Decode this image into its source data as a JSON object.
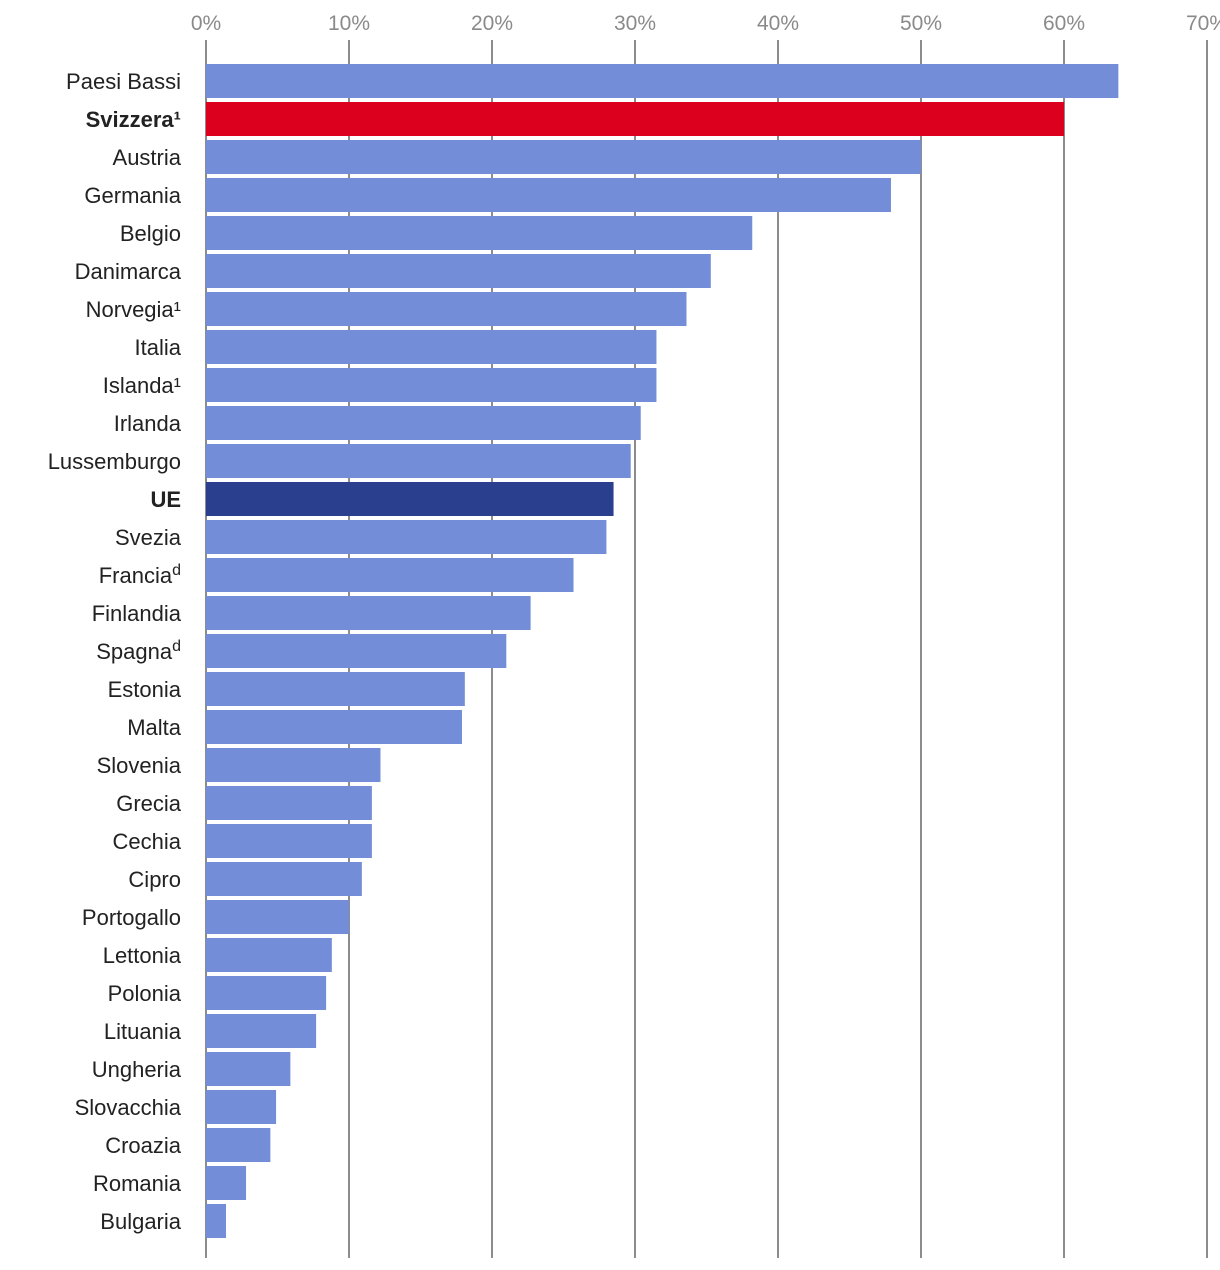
{
  "chart_data": {
    "type": "bar",
    "orientation": "horizontal",
    "xlim": [
      0,
      70
    ],
    "x_ticks": [
      "0%",
      "10%",
      "20%",
      "30%",
      "40%",
      "50%",
      "60%",
      "70%"
    ],
    "tick_values": [
      0,
      10,
      20,
      30,
      40,
      50,
      60,
      70
    ],
    "grid": true,
    "categories": [
      {
        "label": "Paesi Bassi",
        "sup": "",
        "value": 63.8,
        "highlight": "none"
      },
      {
        "label": "Svizzera",
        "sup": "¹",
        "value": 60.0,
        "highlight": "red"
      },
      {
        "label": "Austria",
        "sup": "",
        "value": 50.0,
        "highlight": "none"
      },
      {
        "label": "Germania",
        "sup": "",
        "value": 47.9,
        "highlight": "none"
      },
      {
        "label": "Belgio",
        "sup": "",
        "value": 38.2,
        "highlight": "none"
      },
      {
        "label": "Danimarca",
        "sup": "",
        "value": 35.3,
        "highlight": "none"
      },
      {
        "label": "Norvegia",
        "sup": "¹",
        "value": 33.6,
        "highlight": "none"
      },
      {
        "label": "Italia",
        "sup": "",
        "value": 31.5,
        "highlight": "none"
      },
      {
        "label": "Islanda",
        "sup": "¹",
        "value": 31.5,
        "highlight": "none"
      },
      {
        "label": "Irlanda",
        "sup": "",
        "value": 30.4,
        "highlight": "none"
      },
      {
        "label": "Lussemburgo",
        "sup": "",
        "value": 29.7,
        "highlight": "none"
      },
      {
        "label": "UE",
        "sup": "",
        "value": 28.5,
        "highlight": "dark"
      },
      {
        "label": "Svezia",
        "sup": "",
        "value": 28.0,
        "highlight": "none"
      },
      {
        "label": "Francia",
        "sup": "d",
        "value": 25.7,
        "highlight": "none"
      },
      {
        "label": "Finlandia",
        "sup": "",
        "value": 22.7,
        "highlight": "none"
      },
      {
        "label": "Spagna",
        "sup": "d",
        "value": 21.0,
        "highlight": "none"
      },
      {
        "label": "Estonia",
        "sup": "",
        "value": 18.1,
        "highlight": "none"
      },
      {
        "label": "Malta",
        "sup": "",
        "value": 17.9,
        "highlight": "none"
      },
      {
        "label": "Slovenia",
        "sup": "",
        "value": 12.2,
        "highlight": "none"
      },
      {
        "label": "Grecia",
        "sup": "",
        "value": 11.6,
        "highlight": "none"
      },
      {
        "label": "Cechia",
        "sup": "",
        "value": 11.6,
        "highlight": "none"
      },
      {
        "label": "Cipro",
        "sup": "",
        "value": 10.9,
        "highlight": "none"
      },
      {
        "label": "Portogallo",
        "sup": "",
        "value": 10.0,
        "highlight": "none"
      },
      {
        "label": "Lettonia",
        "sup": "",
        "value": 8.8,
        "highlight": "none"
      },
      {
        "label": "Polonia",
        "sup": "",
        "value": 8.4,
        "highlight": "none"
      },
      {
        "label": "Lituania",
        "sup": "",
        "value": 7.7,
        "highlight": "none"
      },
      {
        "label": "Ungheria",
        "sup": "",
        "value": 5.9,
        "highlight": "none"
      },
      {
        "label": "Slovacchia",
        "sup": "",
        "value": 4.9,
        "highlight": "none"
      },
      {
        "label": "Croazia",
        "sup": "",
        "value": 4.5,
        "highlight": "none"
      },
      {
        "label": "Romania",
        "sup": "",
        "value": 2.8,
        "highlight": "none"
      },
      {
        "label": "Bulgaria",
        "sup": "",
        "value": 1.4,
        "highlight": "none"
      }
    ],
    "colors": {
      "default": "#738dd8",
      "red": "#dc001e",
      "dark": "#2a3f8d"
    }
  }
}
